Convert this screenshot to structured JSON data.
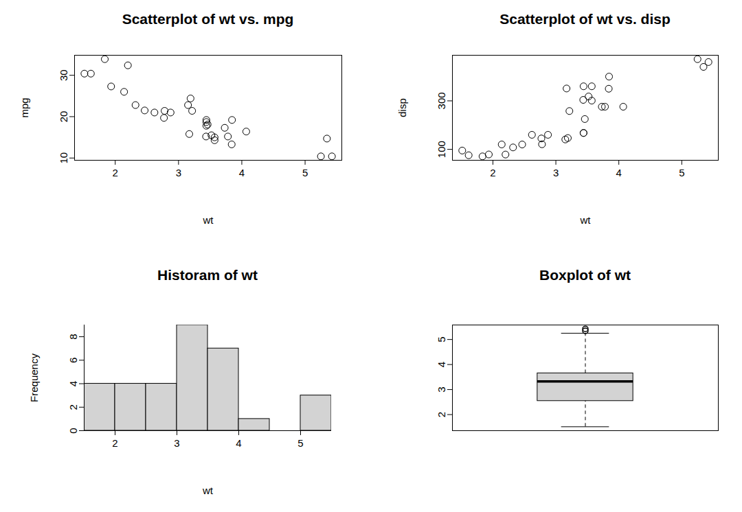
{
  "chart_data": [
    {
      "type": "scatter",
      "title": "Scatterplot of wt vs. mpg",
      "x_label": "wt",
      "y_label": "mpg",
      "x": [
        2.62,
        2.875,
        2.32,
        3.215,
        3.44,
        3.46,
        3.57,
        3.19,
        3.15,
        3.44,
        3.44,
        4.07,
        3.73,
        3.78,
        5.25,
        5.424,
        5.345,
        2.2,
        1.615,
        1.835,
        2.465,
        3.52,
        3.435,
        3.84,
        3.845,
        1.935,
        2.14,
        1.513,
        3.17,
        2.77,
        3.57,
        2.78
      ],
      "y": [
        21.0,
        21.0,
        22.8,
        21.4,
        18.7,
        18.1,
        14.3,
        24.4,
        22.8,
        19.2,
        17.8,
        16.4,
        17.3,
        15.2,
        10.4,
        10.4,
        14.7,
        32.4,
        30.4,
        33.9,
        21.5,
        15.5,
        15.2,
        13.3,
        19.2,
        27.3,
        26.0,
        30.4,
        15.8,
        19.7,
        15.0,
        21.4
      ],
      "xlim": [
        1.357,
        5.58
      ],
      "ylim": [
        9.46,
        34.84
      ],
      "xticks": [
        2,
        3,
        4,
        5
      ],
      "yticks": [
        10,
        20,
        30
      ],
      "marker": "open_circle",
      "color": "#000000"
    },
    {
      "type": "scatter",
      "title": "Scatterplot of wt vs. disp",
      "x_label": "wt",
      "y_label": "disp",
      "x": [
        2.62,
        2.875,
        2.32,
        3.215,
        3.44,
        3.46,
        3.57,
        3.19,
        3.15,
        3.44,
        3.44,
        4.07,
        3.73,
        3.78,
        5.25,
        5.424,
        5.345,
        2.2,
        1.615,
        1.835,
        2.465,
        3.52,
        3.435,
        3.84,
        3.845,
        1.935,
        2.14,
        1.513,
        3.17,
        2.77,
        3.57,
        2.78
      ],
      "y": [
        160,
        160,
        108,
        258,
        360,
        225,
        360,
        146.7,
        140.8,
        167.6,
        167.6,
        275.8,
        275.8,
        275.8,
        472,
        460,
        440,
        78.7,
        75.7,
        71.1,
        120.1,
        318,
        304,
        350,
        400,
        79,
        120.3,
        95.1,
        351,
        145,
        301,
        121
      ],
      "xlim": [
        1.357,
        5.58
      ],
      "ylim": [
        55.06,
        488.04
      ],
      "xticks": [
        2,
        3,
        4,
        5
      ],
      "yticks": [
        100,
        300
      ],
      "marker": "open_circle",
      "color": "#000000"
    },
    {
      "type": "histogram",
      "title": "Historam of wt",
      "x_label": "wt",
      "y_label": "Frequency",
      "bins": [
        1.5,
        2,
        2.5,
        3,
        3.5,
        4,
        4.5,
        5,
        5.5
      ],
      "counts": [
        4,
        4,
        4,
        9,
        7,
        1,
        0,
        3
      ],
      "xlim": [
        1.5,
        5.5
      ],
      "ylim": [
        0,
        9
      ],
      "xticks": [
        2,
        3,
        4,
        5
      ],
      "yticks": [
        0,
        2,
        4,
        6,
        8
      ],
      "color": "#d3d3d3"
    },
    {
      "type": "box",
      "title": "Boxplot of wt",
      "whisker_low": 1.513,
      "q1": 2.5425,
      "median": 3.325,
      "q3": 3.65,
      "whisker_high": 5.25,
      "outliers": [
        5.345,
        5.424
      ],
      "ylim": [
        1.357,
        5.58
      ],
      "yticks": [
        2,
        3,
        4,
        5
      ],
      "color": "#d3d3d3",
      "line_style": "dashed"
    }
  ]
}
